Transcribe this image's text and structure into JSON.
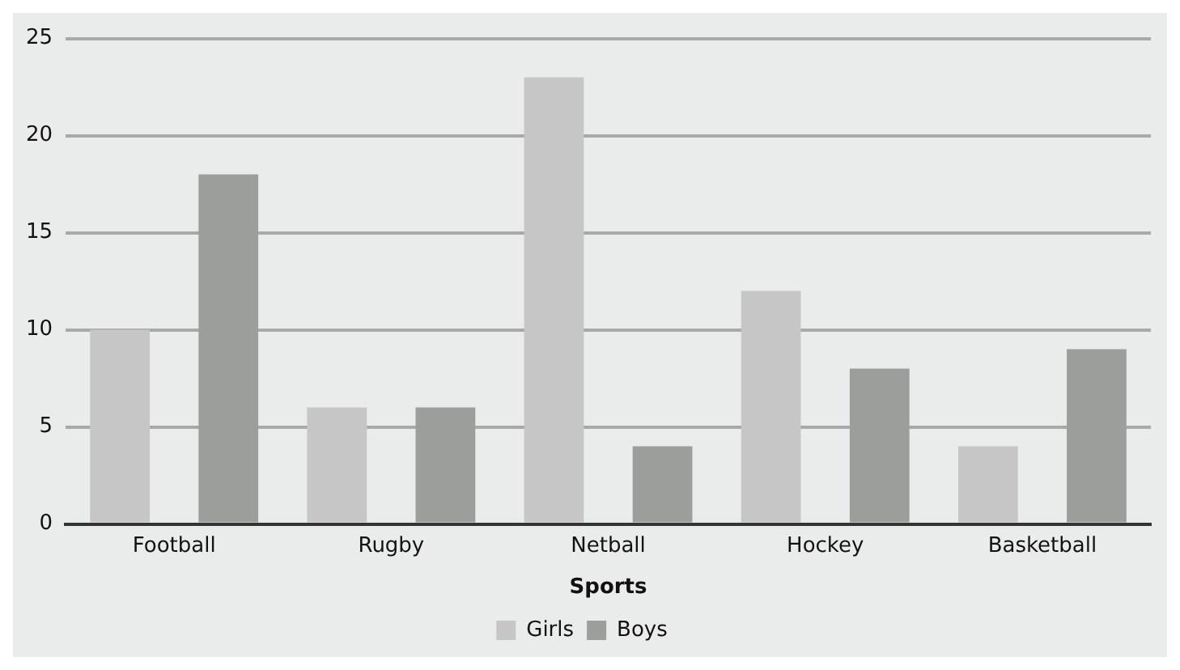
{
  "chart_data": {
    "type": "bar",
    "xlabel": "Sports",
    "categories": [
      "Football",
      "Rugby",
      "Netball",
      "Hockey",
      "Basketball"
    ],
    "series": [
      {
        "name": "Girls",
        "color": "#c5c6c5",
        "values": [
          10,
          6,
          23,
          12,
          4
        ]
      },
      {
        "name": "Boys",
        "color": "#9c9e9c",
        "values": [
          18,
          6,
          4,
          8,
          9
        ]
      }
    ],
    "ylim": [
      0,
      25
    ],
    "yticks": [
      0,
      5,
      10,
      15,
      20,
      25
    ],
    "grid": "y",
    "legend": "bottom"
  }
}
